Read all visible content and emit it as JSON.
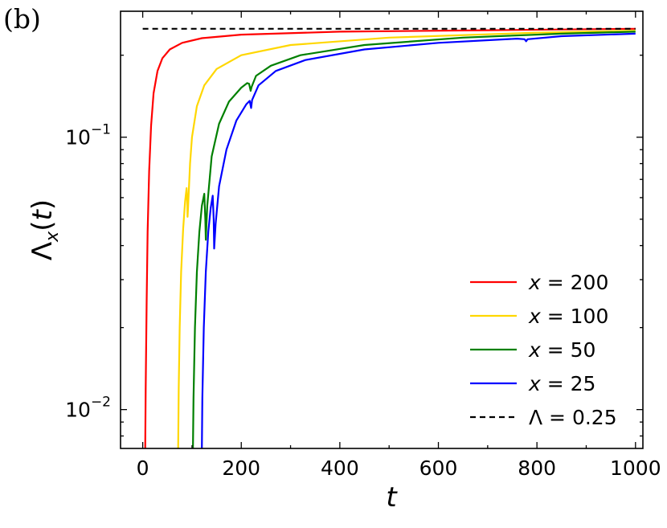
{
  "panel_label": "(b)",
  "chart_data": {
    "type": "line",
    "xlabel": "t",
    "ylabel": "Λ_x(t)",
    "x_scale": "linear",
    "y_scale": "log",
    "xlim": [
      -45,
      1015
    ],
    "ylim": [
      0.0072,
      0.29
    ],
    "x_ticks": [
      0,
      200,
      400,
      600,
      800,
      1000
    ],
    "x_tick_labels": [
      "0",
      "200",
      "400",
      "600",
      "800",
      "1000"
    ],
    "y_major_ticks": [
      0.01,
      0.1
    ],
    "y_tick_labels": [
      {
        "base": "10",
        "exp": "−2",
        "value": 0.01
      },
      {
        "base": "10",
        "exp": "−1",
        "value": 0.1
      }
    ],
    "grid": false,
    "legend_position": "lower-right",
    "series": [
      {
        "name": "x = 200",
        "color": "#ff0000",
        "dash": "",
        "points": [
          [
            5,
            0.0072
          ],
          [
            6,
            0.012
          ],
          [
            8,
            0.025
          ],
          [
            10,
            0.045
          ],
          [
            13,
            0.075
          ],
          [
            17,
            0.11
          ],
          [
            22,
            0.145
          ],
          [
            30,
            0.175
          ],
          [
            40,
            0.195
          ],
          [
            55,
            0.21
          ],
          [
            80,
            0.222
          ],
          [
            120,
            0.231
          ],
          [
            200,
            0.238
          ],
          [
            400,
            0.244
          ],
          [
            700,
            0.247
          ],
          [
            1000,
            0.25
          ]
        ]
      },
      {
        "name": "x = 100",
        "color": "#ffd700",
        "dash": "",
        "points": [
          [
            72,
            0.0072
          ],
          [
            73,
            0.012
          ],
          [
            75,
            0.02
          ],
          [
            78,
            0.032
          ],
          [
            82,
            0.046
          ],
          [
            86,
            0.058
          ],
          [
            89,
            0.065
          ],
          [
            90,
            0.06
          ],
          [
            91,
            0.051
          ],
          [
            92,
            0.055
          ],
          [
            96,
            0.08
          ],
          [
            100,
            0.1
          ],
          [
            110,
            0.13
          ],
          [
            125,
            0.155
          ],
          [
            150,
            0.178
          ],
          [
            200,
            0.2
          ],
          [
            300,
            0.218
          ],
          [
            500,
            0.232
          ],
          [
            800,
            0.242
          ],
          [
            1000,
            0.246
          ]
        ]
      },
      {
        "name": "x = 50",
        "color": "#008000",
        "dash": "",
        "points": [
          [
            102,
            0.0072
          ],
          [
            103,
            0.011
          ],
          [
            106,
            0.02
          ],
          [
            110,
            0.032
          ],
          [
            115,
            0.045
          ],
          [
            120,
            0.056
          ],
          [
            125,
            0.062
          ],
          [
            127,
            0.05
          ],
          [
            128,
            0.042
          ],
          [
            131,
            0.056
          ],
          [
            140,
            0.085
          ],
          [
            155,
            0.112
          ],
          [
            175,
            0.135
          ],
          [
            200,
            0.152
          ],
          [
            212,
            0.158
          ],
          [
            216,
            0.157
          ],
          [
            219,
            0.148
          ],
          [
            221,
            0.153
          ],
          [
            230,
            0.168
          ],
          [
            260,
            0.183
          ],
          [
            320,
            0.2
          ],
          [
            450,
            0.218
          ],
          [
            650,
            0.232
          ],
          [
            850,
            0.24
          ],
          [
            1000,
            0.244
          ]
        ]
      },
      {
        "name": "x = 25",
        "color": "#0000ff",
        "dash": "",
        "points": [
          [
            120,
            0.0072
          ],
          [
            121,
            0.011
          ],
          [
            124,
            0.02
          ],
          [
            128,
            0.032
          ],
          [
            133,
            0.045
          ],
          [
            138,
            0.055
          ],
          [
            142,
            0.061
          ],
          [
            144,
            0.05
          ],
          [
            145,
            0.039
          ],
          [
            148,
            0.048
          ],
          [
            155,
            0.066
          ],
          [
            170,
            0.09
          ],
          [
            190,
            0.115
          ],
          [
            210,
            0.132
          ],
          [
            217,
            0.136
          ],
          [
            220,
            0.128
          ],
          [
            222,
            0.137
          ],
          [
            235,
            0.155
          ],
          [
            270,
            0.175
          ],
          [
            330,
            0.192
          ],
          [
            450,
            0.21
          ],
          [
            600,
            0.222
          ],
          [
            760,
            0.23
          ],
          [
            775,
            0.229
          ],
          [
            778,
            0.225
          ],
          [
            781,
            0.229
          ],
          [
            850,
            0.235
          ],
          [
            1000,
            0.24
          ]
        ]
      },
      {
        "name": "Λ = 0.25",
        "color": "#000000",
        "dash": "7,5",
        "points": [
          [
            0,
            0.25
          ],
          [
            1000,
            0.25
          ]
        ]
      }
    ]
  }
}
